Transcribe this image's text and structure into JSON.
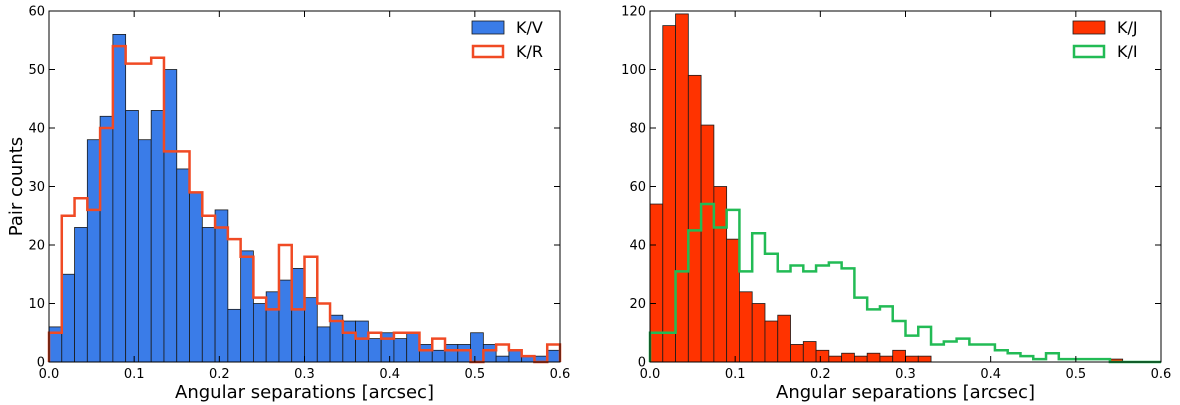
{
  "chart_data": [
    {
      "type": "histogram",
      "bin_width": 0.015,
      "xlabel": "Angular separations [arcsec]",
      "ylabel": "Pair counts",
      "xlim": [
        0.0,
        0.6
      ],
      "ylim": [
        0,
        60
      ],
      "xticks": [
        "0.0",
        "0.1",
        "0.2",
        "0.3",
        "0.4",
        "0.5",
        "0.6"
      ],
      "yticks": [
        "0",
        "10",
        "20",
        "30",
        "40",
        "50",
        "60"
      ],
      "legend_position": "top-right",
      "series": [
        {
          "name": "K/V",
          "style": "filled",
          "color": "#3a7ce8",
          "values": [
            6,
            15,
            23,
            38,
            42,
            56,
            43,
            38,
            43,
            50,
            33,
            29,
            23,
            26,
            9,
            19,
            10,
            12,
            14,
            16,
            11,
            6,
            8,
            7,
            7,
            4,
            5,
            4,
            5,
            3,
            2,
            3,
            3,
            5,
            3,
            1,
            2,
            1,
            1,
            2
          ]
        },
        {
          "name": "K/R",
          "style": "step",
          "color": "#f04a24",
          "values": [
            5,
            25,
            28,
            26,
            40,
            54,
            51,
            51,
            52,
            36,
            36,
            29,
            25,
            23,
            21,
            18,
            11,
            9,
            20,
            9,
            18,
            10,
            7,
            5,
            4,
            5,
            4,
            5,
            5,
            2,
            4,
            2,
            2,
            0,
            2,
            3,
            2,
            1,
            0,
            3
          ]
        }
      ]
    },
    {
      "type": "histogram",
      "bin_width": 0.015,
      "xlabel": "Angular separations [arcsec]",
      "ylabel": "",
      "xlim": [
        0.0,
        0.6
      ],
      "ylim": [
        0,
        120
      ],
      "xticks": [
        "0.0",
        "0.1",
        "0.2",
        "0.3",
        "0.4",
        "0.5",
        "0.6"
      ],
      "yticks": [
        "0",
        "20",
        "40",
        "60",
        "80",
        "100",
        "120"
      ],
      "legend_position": "top-right",
      "series": [
        {
          "name": "K/J",
          "style": "filled",
          "color": "#ff3300",
          "values": [
            54,
            115,
            119,
            98,
            81,
            60,
            42,
            24,
            20,
            14,
            16,
            6,
            7,
            4,
            2,
            3,
            2,
            3,
            2,
            4,
            2,
            2,
            0,
            0,
            0,
            0,
            0,
            0,
            0,
            0,
            0,
            0,
            0,
            0,
            0,
            0,
            1,
            0,
            0,
            0
          ]
        },
        {
          "name": "K/I",
          "style": "step",
          "color": "#22bb55",
          "values": [
            10,
            10,
            31,
            45,
            54,
            46,
            52,
            31,
            44,
            37,
            31,
            33,
            31,
            33,
            34,
            32,
            22,
            18,
            19,
            14,
            9,
            12,
            6,
            7,
            8,
            6,
            6,
            4,
            3,
            2,
            1,
            3,
            1,
            1,
            1,
            1,
            0,
            0,
            0,
            0
          ]
        }
      ]
    }
  ]
}
